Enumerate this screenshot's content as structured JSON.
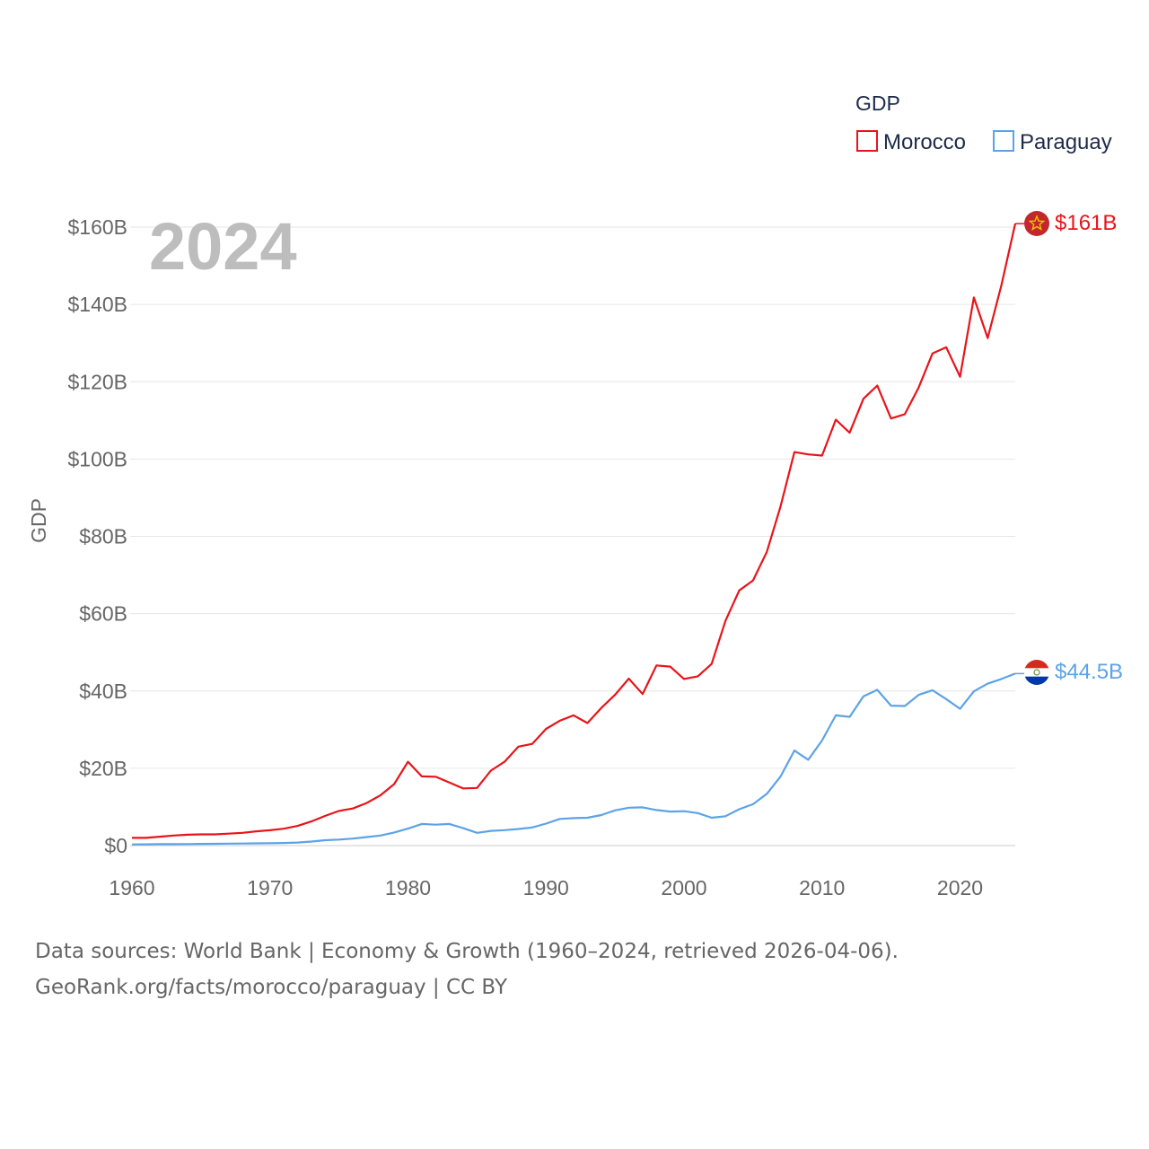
{
  "chart_data": {
    "type": "line",
    "big_year": "2024",
    "ylabel": "GDP",
    "legend": {
      "title": "GDP",
      "position": "top-right"
    },
    "ylim": [
      0,
      160
    ],
    "yticks": [
      0,
      20,
      40,
      60,
      80,
      100,
      120,
      140,
      160
    ],
    "ytick_labels": [
      "$0",
      "$20B",
      "$40B",
      "$60B",
      "$80B",
      "$100B",
      "$120B",
      "$140B",
      "$160B"
    ],
    "xlim": [
      1960,
      2024
    ],
    "xticks": [
      1960,
      1970,
      1980,
      1990,
      2000,
      2010,
      2020
    ],
    "xtick_labels": [
      "1960",
      "1970",
      "1980",
      "1990",
      "2000",
      "2010",
      "2020"
    ],
    "x": [
      1960,
      1961,
      1962,
      1963,
      1964,
      1965,
      1966,
      1967,
      1968,
      1969,
      1970,
      1971,
      1972,
      1973,
      1974,
      1975,
      1976,
      1977,
      1978,
      1979,
      1980,
      1981,
      1982,
      1983,
      1984,
      1985,
      1986,
      1987,
      1988,
      1989,
      1990,
      1991,
      1992,
      1993,
      1994,
      1995,
      1996,
      1997,
      1998,
      1999,
      2000,
      2001,
      2002,
      2003,
      2004,
      2005,
      2006,
      2007,
      2008,
      2009,
      2010,
      2011,
      2012,
      2013,
      2014,
      2015,
      2016,
      2017,
      2018,
      2019,
      2020,
      2021,
      2022,
      2023,
      2024
    ],
    "series": [
      {
        "name": "Morocco",
        "color": "#e8141a",
        "end_label": "$161B",
        "flag": "morocco-flag-icon",
        "values": [
          2.0,
          2.0,
          2.3,
          2.6,
          2.8,
          2.9,
          2.9,
          3.1,
          3.3,
          3.7,
          3.96,
          4.36,
          5.08,
          6.24,
          7.68,
          8.97,
          9.6,
          11.0,
          13.0,
          15.9,
          21.7,
          17.9,
          17.8,
          16.3,
          14.8,
          14.9,
          19.4,
          21.7,
          25.6,
          26.3,
          30.2,
          32.3,
          33.7,
          31.7,
          35.6,
          39.0,
          43.2,
          39.2,
          46.6,
          46.3,
          43.1,
          43.8,
          47.0,
          58.1,
          66.0,
          68.6,
          76.0,
          87.8,
          101.8,
          101.2,
          100.9,
          110.2,
          106.8,
          115.6,
          119.0,
          110.5,
          111.6,
          118.5,
          127.3,
          128.9,
          121.3,
          141.8,
          131.3,
          145.0,
          160.9
        ]
      },
      {
        "name": "Paraguay",
        "color": "#5ca3e6",
        "end_label": "$44.5B",
        "flag": "paraguay-flag-icon",
        "values": [
          0.3,
          0.33,
          0.36,
          0.38,
          0.4,
          0.44,
          0.46,
          0.5,
          0.53,
          0.58,
          0.6,
          0.67,
          0.8,
          1.05,
          1.4,
          1.56,
          1.8,
          2.2,
          2.6,
          3.4,
          4.4,
          5.6,
          5.4,
          5.6,
          4.5,
          3.3,
          3.8,
          4.0,
          4.3,
          4.7,
          5.7,
          6.9,
          7.1,
          7.2,
          7.9,
          9.1,
          9.8,
          9.9,
          9.2,
          8.8,
          8.9,
          8.4,
          7.2,
          7.6,
          9.4,
          10.7,
          13.4,
          17.9,
          24.6,
          22.2,
          27.2,
          33.7,
          33.3,
          38.6,
          40.3,
          36.2,
          36.1,
          39.0,
          40.2,
          37.9,
          35.4,
          39.9,
          41.9,
          43.1,
          44.5
        ]
      }
    ]
  },
  "footer": {
    "line1": "Data sources: World Bank | Economy & Growth (1960–2024, retrieved 2026-04-06).",
    "line2": "GeoRank.org/facts/morocco/paraguay | CC BY"
  }
}
